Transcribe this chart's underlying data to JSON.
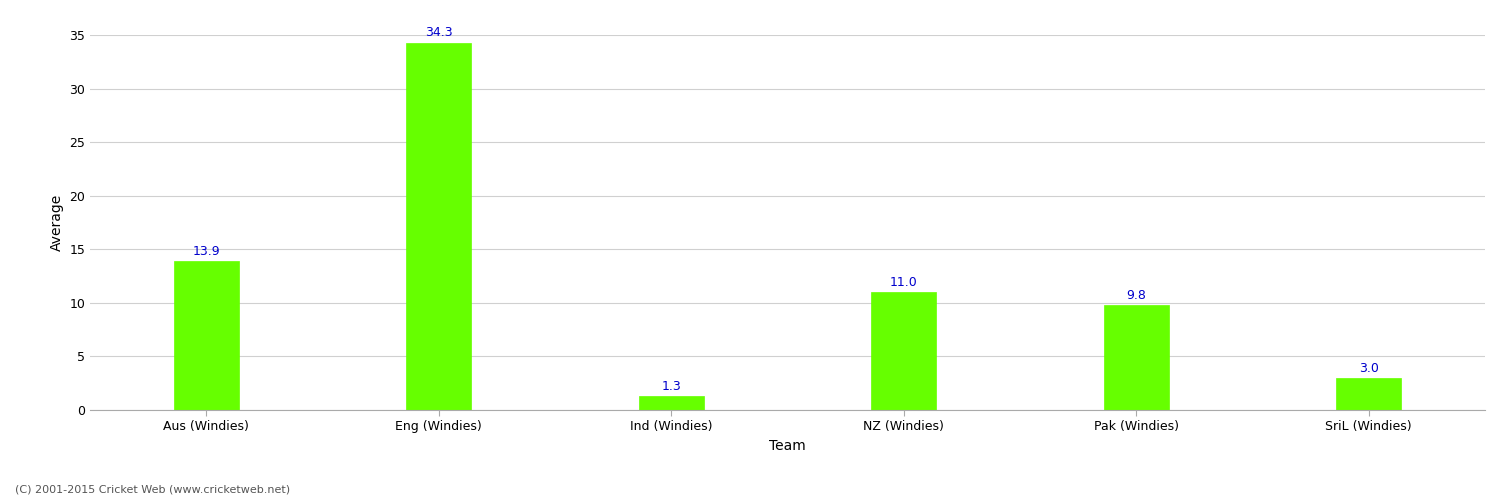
{
  "categories": [
    "Aus (Windies)",
    "Eng (Windies)",
    "Ind (Windies)",
    "NZ (Windies)",
    "Pak (Windies)",
    "SriL (Windies)"
  ],
  "values": [
    13.9,
    34.3,
    1.3,
    11.0,
    9.8,
    3.0
  ],
  "bar_color": "#66ff00",
  "bar_edge_color": "#66ff00",
  "xlabel": "Team",
  "ylabel": "Average",
  "ylim": [
    0,
    35
  ],
  "yticks": [
    0,
    5,
    10,
    15,
    20,
    25,
    30,
    35
  ],
  "label_color": "#0000cc",
  "label_fontsize": 9,
  "axis_label_fontsize": 10,
  "tick_fontsize": 9,
  "grid_color": "#d0d0d0",
  "background_color": "#ffffff",
  "footer_text": "(C) 2001-2015 Cricket Web (www.cricketweb.net)",
  "footer_fontsize": 8,
  "footer_color": "#555555"
}
